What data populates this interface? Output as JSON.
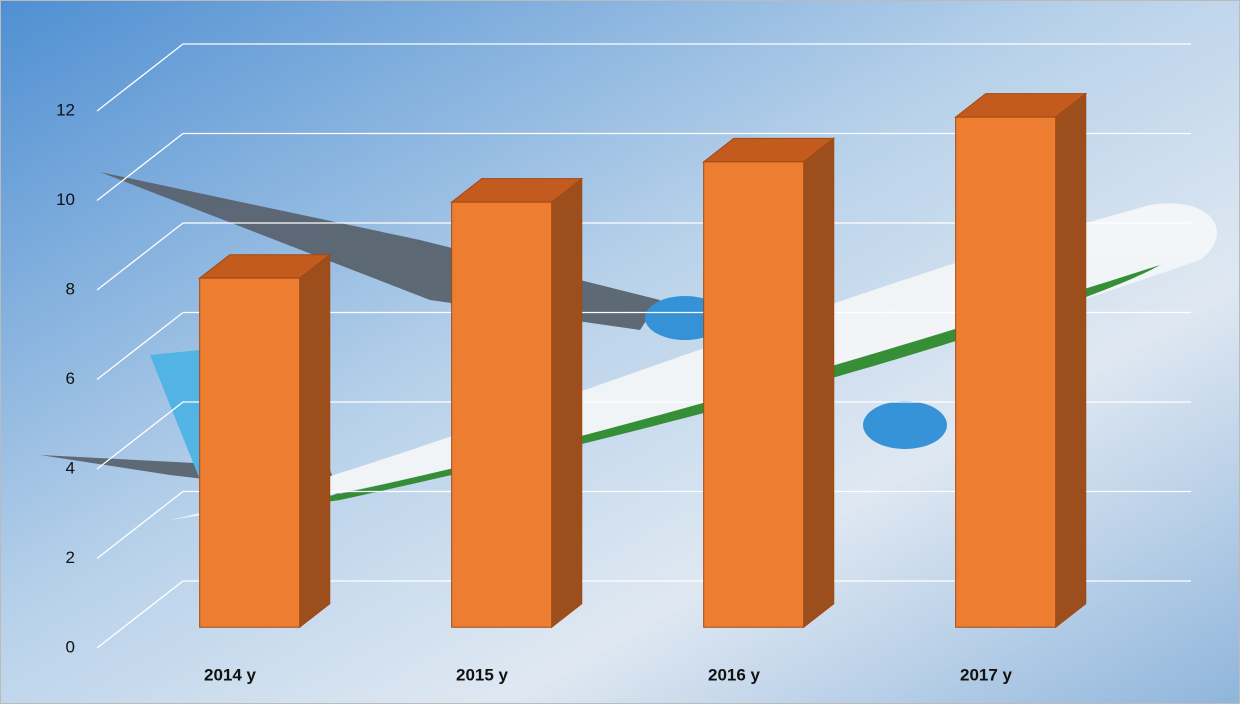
{
  "chart_data": {
    "type": "bar3d",
    "categories": [
      "2014 y",
      "2015 y",
      "2016 y",
      "2017 y"
    ],
    "values": [
      7.8,
      9.5,
      10.4,
      11.4
    ],
    "color": "#ed7d31",
    "ylim": [
      0,
      12
    ],
    "yticks": [
      0,
      2,
      4,
      6,
      8,
      10,
      12
    ],
    "grid": true
  }
}
